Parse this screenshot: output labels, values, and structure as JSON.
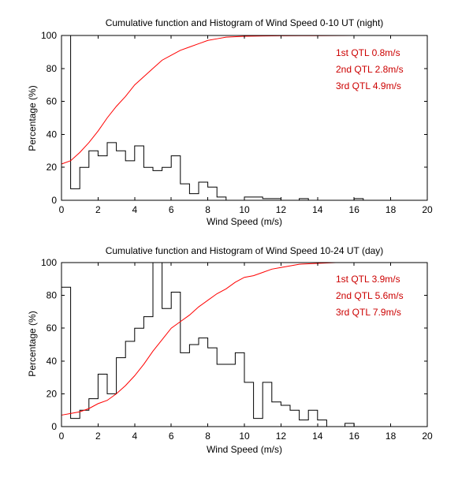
{
  "chart_data": [
    {
      "type": "bar",
      "title": "Cumulative function and Histogram of Wind Speed 0-10 UT (night)",
      "xlabel": "Wind Speed (m/s)",
      "ylabel": "Percentage (%)",
      "xlim": [
        0,
        20
      ],
      "ylim": [
        0,
        100
      ],
      "xticks": [
        0,
        2,
        4,
        6,
        8,
        10,
        12,
        14,
        16,
        18,
        20
      ],
      "yticks": [
        0,
        20,
        40,
        60,
        80,
        100
      ],
      "grid": false,
      "series": [
        {
          "kind": "histogram",
          "color": "#000000",
          "bin_width": 0.5,
          "bin_start": 0,
          "values": [
            100,
            7,
            20,
            30,
            27,
            35,
            30,
            24,
            33,
            20,
            18,
            20,
            27,
            10,
            4,
            11,
            8,
            2,
            0,
            0,
            2,
            2,
            1,
            1,
            0,
            0,
            1,
            0,
            0,
            0,
            0,
            0,
            1,
            0,
            0,
            0,
            0,
            0,
            0,
            0
          ]
        },
        {
          "kind": "cumulative",
          "color": "#ff0000",
          "x": [
            0,
            0.5,
            1,
            1.5,
            2,
            2.5,
            3,
            3.5,
            4,
            4.5,
            5,
            5.5,
            6,
            6.5,
            7,
            7.5,
            8,
            8.5,
            9,
            10,
            11,
            12,
            14,
            16,
            18,
            20
          ],
          "y": [
            22,
            24,
            29,
            35,
            42,
            50,
            57,
            63,
            70,
            75,
            80,
            85,
            88,
            91,
            93,
            95,
            97,
            98,
            99,
            99.5,
            99.7,
            99.8,
            99.9,
            100,
            100,
            100
          ]
        }
      ],
      "annotations": [
        "1st QTL 0.8m/s",
        "2nd QTL 2.8m/s",
        "3rd QTL 4.9m/s"
      ]
    },
    {
      "type": "bar",
      "title": "Cumulative function and Histogram of Wind Speed 10-24 UT (day)",
      "xlabel": "Wind Speed (m/s)",
      "ylabel": "Percentage (%)",
      "xlim": [
        0,
        20
      ],
      "ylim": [
        0,
        100
      ],
      "xticks": [
        0,
        2,
        4,
        6,
        8,
        10,
        12,
        14,
        16,
        18,
        20
      ],
      "yticks": [
        0,
        20,
        40,
        60,
        80,
        100
      ],
      "grid": false,
      "series": [
        {
          "kind": "histogram",
          "color": "#000000",
          "bin_width": 0.5,
          "bin_start": 0,
          "values": [
            85,
            5,
            10,
            17,
            32,
            20,
            42,
            52,
            60,
            67,
            100,
            72,
            82,
            45,
            50,
            54,
            48,
            38,
            38,
            45,
            27,
            5,
            27,
            15,
            13,
            10,
            4,
            10,
            4,
            0,
            0,
            2,
            0,
            0,
            0,
            0,
            0,
            0,
            0,
            0
          ]
        },
        {
          "kind": "cumulative",
          "color": "#ff0000",
          "x": [
            0,
            0.5,
            1,
            1.5,
            2,
            2.5,
            3,
            3.5,
            4,
            4.5,
            5,
            5.5,
            6,
            6.5,
            7,
            7.5,
            8,
            8.5,
            9,
            9.5,
            10,
            10.5,
            11,
            11.5,
            12,
            13,
            14,
            15,
            16,
            18,
            20
          ],
          "y": [
            7,
            8,
            9,
            11,
            14,
            16,
            20,
            25,
            31,
            38,
            46,
            53,
            60,
            64,
            68,
            73,
            77,
            81,
            84,
            88,
            91,
            92,
            94,
            96,
            97,
            99,
            99.5,
            100,
            100,
            100,
            100
          ]
        }
      ],
      "annotations": [
        "1st QTL 3.9m/s",
        "2nd QTL 5.6m/s",
        "3rd QTL 7.9m/s"
      ]
    }
  ]
}
